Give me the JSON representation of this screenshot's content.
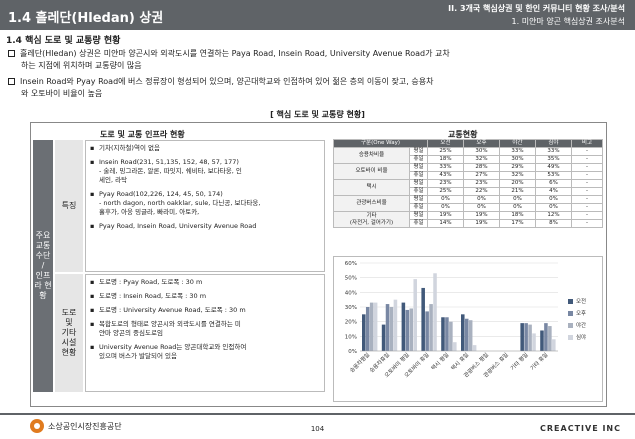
{
  "header": {
    "title": "1.4 흘레단(Hledan) 상권",
    "right_line1": "II. 3개국 핵심상권 및 한인 커뮤니티 현황 조사/분석",
    "right_line2": "1. 미얀마 양곤 핵심상권 조사분석"
  },
  "section_title": "1.4 핵심 도로 및 교통량 현황",
  "bullets": [
    {
      "line1": "흘레단(Hledan) 상권은 미얀마 양곤시와 외곽도시를 연결하는 Paya Road, Insein Road, University Avenue Road가 교차",
      "line2": "하는 지점에 위치하며 교통량이 많음"
    },
    {
      "line1": "Insein Road와 Pyay Road에 버스 정류장이 형성되어 있으며, 양곤대학교와 인접하여 있어 젊은 층의 이동이 잦고, 승용차",
      "line2": "와 오토바이 비율이 높음"
    }
  ],
  "caption": "[ 핵심 도로 및 교통량 현황]",
  "left": {
    "header": "도로 및 교통 인프라 현황",
    "vertical_label": "주요\n교통\n수단\n/\n인프\n라 현\n황",
    "row1_label": "특징",
    "row1_items": [
      {
        "text": "기차(지하철)역이 없음",
        "sub": ""
      },
      {
        "text": "Insein Road(231, 51,135, 152, 48, 57, 177)",
        "sub": "- 술레, 밍그라돈, 알론, 따잇지, 쉐비타, 보다타웅, 인\n세인, 라탁"
      },
      {
        "text": "Pyay Road(102,226, 124, 45, 50, 174)",
        "sub": "- north dagon, north oakklar, sule, 다닌공, 보다타웅,\n흘후가, 아웅 밍글라, 빠라미, 아토카,"
      },
      {
        "text": "Pyay Road, Insein Road, University Avenue Road",
        "sub": ""
      }
    ],
    "row2_label": "도로\n및\n기타\n시설\n현황",
    "row2_items": [
      {
        "text": "도로명 : Pyay Road, 도로폭 : 30 m",
        "sub": ""
      },
      {
        "text": "도로명 : Insein  Road, 도로폭 : 30 m",
        "sub": ""
      },
      {
        "text": "도로명 : University Avenue Road, 도로폭 : 30 m",
        "sub": ""
      },
      {
        "text": "복합도로의 형태로 양곤시와 외곽도시를 연결하는 미\n얀마 양곤의 중심도로임",
        "sub": ""
      },
      {
        "text": "University Avenue Road는 양곤대학교와 인접하여\n있으며 버스가 발달되어 있음",
        "sub": ""
      }
    ]
  },
  "traffic": {
    "header": "교통현황",
    "columns": [
      "구분(One Way)",
      "",
      "오전",
      "오후",
      "야간",
      "심야",
      "비고"
    ],
    "rows": [
      {
        "cat": "승용차비율",
        "sub": "평일",
        "v": [
          "25%",
          "30%",
          "33%",
          "33%",
          "-"
        ]
      },
      {
        "cat": "",
        "sub": "휴일",
        "v": [
          "18%",
          "32%",
          "30%",
          "35%",
          "-"
        ]
      },
      {
        "cat": "오토바이 비율",
        "sub": "평일",
        "v": [
          "33%",
          "28%",
          "29%",
          "49%",
          "-"
        ]
      },
      {
        "cat": "",
        "sub": "휴일",
        "v": [
          "43%",
          "27%",
          "32%",
          "53%",
          "-"
        ]
      },
      {
        "cat": "택시",
        "sub": "평일",
        "v": [
          "23%",
          "23%",
          "20%",
          "6%",
          "-"
        ]
      },
      {
        "cat": "",
        "sub": "휴일",
        "v": [
          "25%",
          "22%",
          "21%",
          "4%",
          "-"
        ]
      },
      {
        "cat": "관광버스비율",
        "sub": "평일",
        "v": [
          "0%",
          "0%",
          "0%",
          "0%",
          "-"
        ]
      },
      {
        "cat": "",
        "sub": "휴일",
        "v": [
          "0%",
          "0%",
          "0%",
          "0%",
          "-"
        ]
      },
      {
        "cat": "기타",
        "sub": "평일",
        "v": [
          "19%",
          "19%",
          "18%",
          "12%",
          "-"
        ]
      },
      {
        "cat": "(자전거, 걸어가기)",
        "sub": "휴일",
        "v": [
          "14%",
          "19%",
          "17%",
          "8%",
          "-"
        ]
      }
    ]
  },
  "chart_data": {
    "type": "bar",
    "categories": [
      "승용차평일",
      "승용차휴일",
      "오토바이 평일",
      "오토바이 휴일",
      "택시 평일",
      "택시 휴일",
      "관광버스 평일",
      "관광버스 휴일",
      "기타 평일",
      "기타 휴일"
    ],
    "series": [
      {
        "name": "오전",
        "values": [
          25,
          18,
          33,
          43,
          23,
          25,
          0,
          0,
          19,
          14
        ]
      },
      {
        "name": "오후",
        "values": [
          30,
          32,
          28,
          27,
          23,
          22,
          0,
          0,
          19,
          19
        ]
      },
      {
        "name": "야간",
        "values": [
          33,
          30,
          29,
          32,
          20,
          21,
          0,
          0,
          18,
          17
        ]
      },
      {
        "name": "심야",
        "values": [
          33,
          35,
          49,
          53,
          6,
          4,
          0,
          0,
          12,
          8
        ]
      }
    ],
    "colors": [
      "#41597a",
      "#7887a3",
      "#a9b1bf",
      "#d1d5de"
    ],
    "ylim": [
      0,
      60
    ],
    "yticks": [
      "0%",
      "10%",
      "20%",
      "30%",
      "40%",
      "50%",
      "60%"
    ],
    "legend": "right",
    "grid": true
  },
  "footer": {
    "org": "소상공인시장진흥공단",
    "page": "104",
    "brand": "CREACTIVE INC"
  }
}
